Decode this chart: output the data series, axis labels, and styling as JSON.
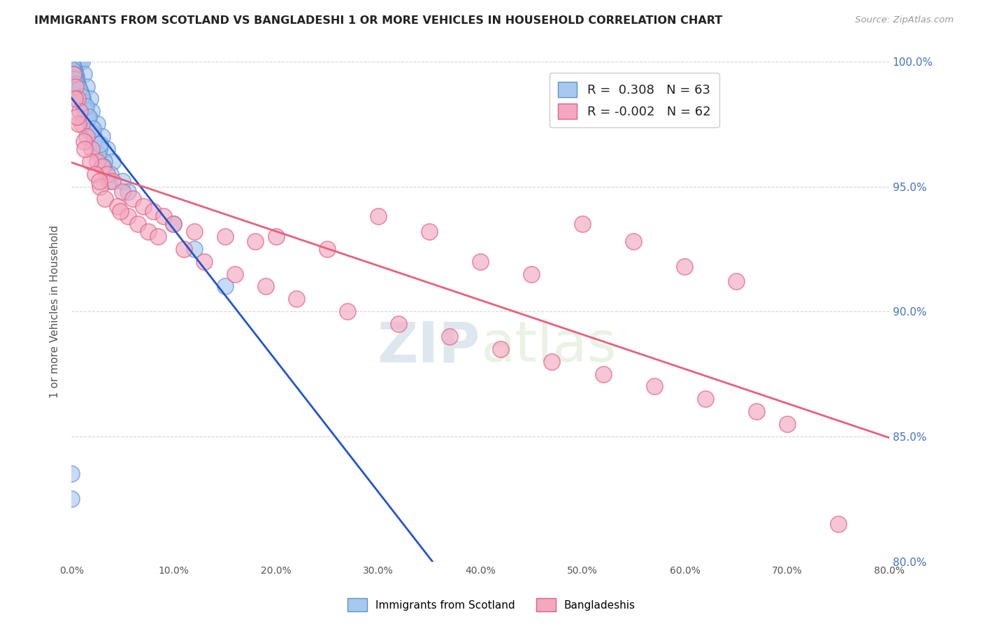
{
  "title": "IMMIGRANTS FROM SCOTLAND VS BANGLADESHI 1 OR MORE VEHICLES IN HOUSEHOLD CORRELATION CHART",
  "source": "Source: ZipAtlas.com",
  "ylabel": "1 or more Vehicles in Household",
  "xlim": [
    0.0,
    80.0
  ],
  "ylim": [
    80.0,
    100.0
  ],
  "xticks": [
    0.0,
    10.0,
    20.0,
    30.0,
    40.0,
    50.0,
    60.0,
    70.0,
    80.0
  ],
  "yticks": [
    80.0,
    85.0,
    90.0,
    95.0,
    100.0
  ],
  "blue_R": 0.308,
  "blue_N": 63,
  "pink_R": -0.002,
  "pink_N": 62,
  "blue_color": "#a8c8f0",
  "pink_color": "#f4a8c0",
  "blue_edge_color": "#6090d0",
  "pink_edge_color": "#e06080",
  "blue_line_color": "#2255cc",
  "pink_line_color": "#e8607a",
  "legend_label_blue": "Immigrants from Scotland",
  "legend_label_pink": "Bangladeshis",
  "blue_x": [
    0.1,
    0.2,
    0.3,
    0.4,
    0.5,
    0.6,
    0.8,
    1.0,
    1.2,
    1.5,
    1.8,
    2.0,
    2.5,
    3.0,
    3.5,
    4.0,
    0.15,
    0.25,
    0.35,
    0.45,
    0.55,
    0.7,
    0.9,
    1.1,
    1.3,
    1.6,
    1.9,
    2.2,
    2.7,
    3.2,
    3.8,
    0.05,
    0.12,
    0.22,
    0.32,
    0.42,
    0.62,
    0.85,
    1.05,
    1.25,
    1.55,
    1.85,
    2.15,
    2.6,
    3.1,
    3.7,
    0.08,
    0.18,
    0.28,
    0.48,
    0.75,
    1.0,
    1.4,
    1.7,
    2.1,
    2.8,
    0.0,
    0.0,
    5.0,
    5.5,
    10.0,
    12.0,
    15.0
  ],
  "blue_y": [
    100.0,
    100.0,
    100.0,
    100.0,
    100.0,
    100.0,
    100.0,
    100.0,
    99.5,
    99.0,
    98.5,
    98.0,
    97.5,
    97.0,
    96.5,
    96.0,
    99.8,
    99.7,
    99.6,
    99.4,
    99.2,
    99.0,
    98.8,
    98.5,
    98.2,
    97.8,
    97.4,
    97.0,
    96.5,
    96.0,
    95.5,
    99.9,
    99.8,
    99.6,
    99.5,
    99.3,
    99.0,
    98.7,
    98.4,
    98.1,
    97.7,
    97.2,
    96.8,
    96.3,
    95.8,
    95.2,
    99.7,
    99.5,
    99.3,
    99.1,
    98.9,
    98.6,
    98.2,
    97.8,
    97.3,
    96.7,
    83.5,
    82.5,
    95.2,
    94.8,
    93.5,
    92.5,
    91.0
  ],
  "pink_x": [
    0.2,
    0.4,
    0.6,
    0.8,
    1.0,
    1.5,
    2.0,
    2.5,
    3.0,
    3.5,
    4.0,
    5.0,
    6.0,
    7.0,
    8.0,
    9.0,
    10.0,
    12.0,
    15.0,
    18.0,
    20.0,
    25.0,
    30.0,
    35.0,
    40.0,
    45.0,
    50.0,
    55.0,
    60.0,
    65.0,
    0.3,
    0.7,
    1.2,
    1.8,
    2.3,
    2.8,
    3.3,
    4.5,
    5.5,
    6.5,
    7.5,
    8.5,
    11.0,
    13.0,
    16.0,
    19.0,
    22.0,
    27.0,
    32.0,
    37.0,
    42.0,
    47.0,
    52.0,
    57.0,
    62.0,
    67.0,
    70.0,
    0.5,
    1.3,
    2.7,
    4.8,
    75.0
  ],
  "pink_y": [
    99.5,
    99.0,
    98.5,
    98.0,
    97.5,
    97.0,
    96.5,
    96.0,
    95.8,
    95.5,
    95.2,
    94.8,
    94.5,
    94.2,
    94.0,
    93.8,
    93.5,
    93.2,
    93.0,
    92.8,
    93.0,
    92.5,
    93.8,
    93.2,
    92.0,
    91.5,
    93.5,
    92.8,
    91.8,
    91.2,
    98.5,
    97.5,
    96.8,
    96.0,
    95.5,
    95.0,
    94.5,
    94.2,
    93.8,
    93.5,
    93.2,
    93.0,
    92.5,
    92.0,
    91.5,
    91.0,
    90.5,
    90.0,
    89.5,
    89.0,
    88.5,
    88.0,
    87.5,
    87.0,
    86.5,
    86.0,
    85.5,
    97.8,
    96.5,
    95.2,
    94.0,
    81.5
  ]
}
